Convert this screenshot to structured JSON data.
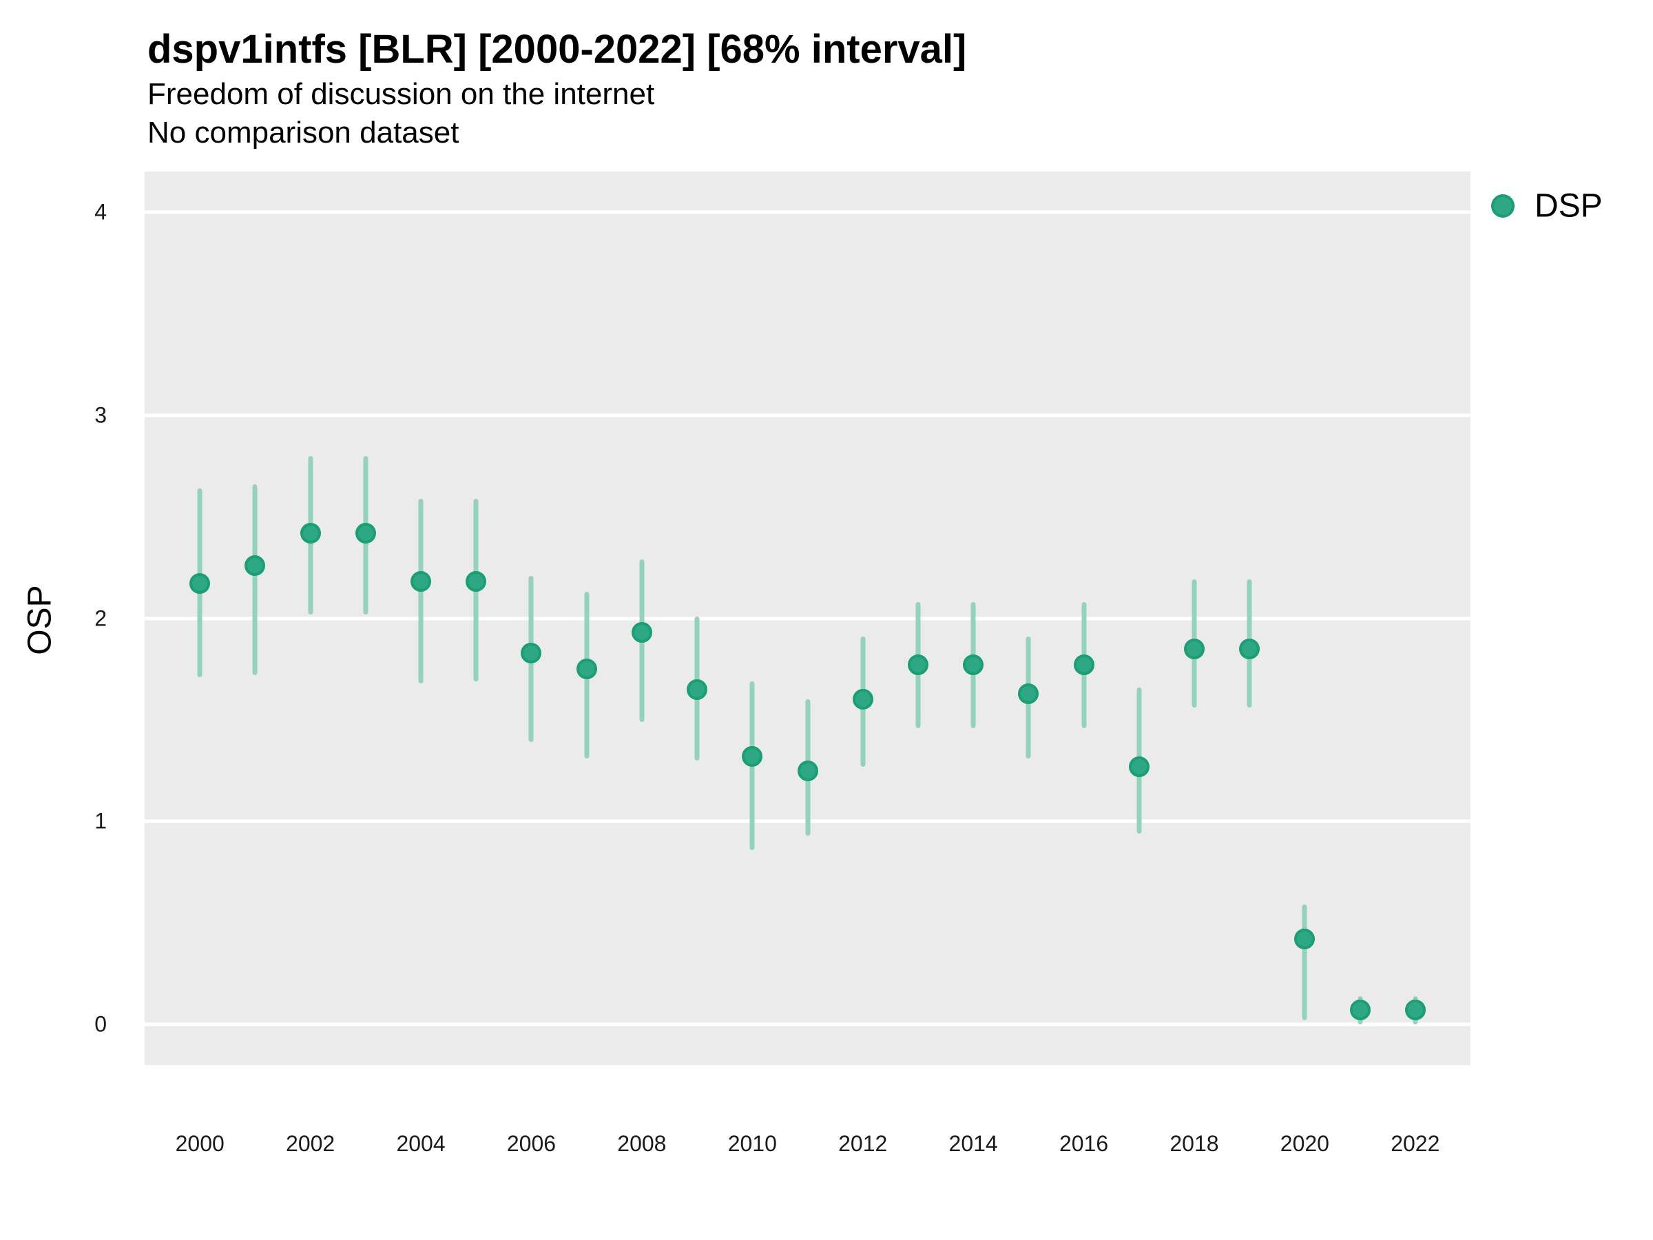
{
  "header": {
    "title": "dspv1intfs [BLR] [2000-2022] [68% interval]",
    "subtitle": "Freedom of discussion on the internet",
    "subtitle2": "No comparison dataset"
  },
  "legend": {
    "label": "DSP",
    "marker": "circle-icon",
    "position": "right"
  },
  "axes": {
    "y_label": "OSP",
    "y_ticks": [
      0,
      1,
      2,
      3,
      4
    ],
    "x_ticks": [
      2000,
      2002,
      2004,
      2006,
      2008,
      2010,
      2012,
      2014,
      2016,
      2018,
      2020,
      2022
    ]
  },
  "colors": {
    "point_fill": "#2EA884",
    "point_border": "#1A9E74",
    "interval_line": "#93D3BB",
    "panel_bg": "#EBEBEB",
    "gridline": "#FFFFFF",
    "text": "#000000"
  },
  "chart_data": {
    "type": "scatter",
    "title": "dspv1intfs [BLR] [2000-2022] [68% interval]",
    "subtitle": "Freedom of discussion on the internet",
    "note": "No comparison dataset",
    "xlabel": "",
    "ylabel": "OSP",
    "xlim": [
      1999,
      2023
    ],
    "ylim": [
      -0.2,
      4.2
    ],
    "grid": "horizontal-major-only",
    "legend_position": "right",
    "interval": "68%",
    "series": [
      {
        "name": "DSP",
        "x": [
          2000,
          2001,
          2002,
          2003,
          2004,
          2005,
          2006,
          2007,
          2008,
          2009,
          2010,
          2011,
          2012,
          2013,
          2014,
          2015,
          2016,
          2017,
          2018,
          2019,
          2020,
          2021,
          2022
        ],
        "y": [
          2.17,
          2.26,
          2.42,
          2.42,
          2.18,
          2.18,
          1.83,
          1.75,
          1.93,
          1.65,
          1.32,
          1.25,
          1.6,
          1.77,
          1.77,
          1.63,
          1.77,
          1.27,
          1.85,
          1.85,
          0.42,
          0.07,
          0.07
        ],
        "lo": [
          1.71,
          1.72,
          2.02,
          2.02,
          1.68,
          1.69,
          1.39,
          1.31,
          1.49,
          1.3,
          0.86,
          0.93,
          1.27,
          1.46,
          1.46,
          1.31,
          1.46,
          0.94,
          1.56,
          1.56,
          0.02,
          0.0,
          0.0
        ],
        "hi": [
          2.64,
          2.66,
          2.8,
          2.8,
          2.59,
          2.59,
          2.21,
          2.13,
          2.29,
          2.01,
          1.69,
          1.6,
          1.91,
          2.08,
          2.08,
          1.91,
          2.08,
          1.66,
          2.19,
          2.19,
          0.59,
          0.14,
          0.14
        ]
      }
    ]
  }
}
